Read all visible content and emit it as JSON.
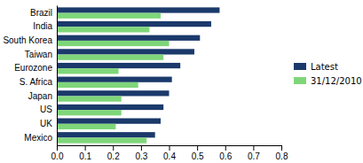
{
  "chart_data": {
    "type": "bar",
    "orientation": "horizontal",
    "categories": [
      "Brazil",
      "India",
      "South Korea",
      "Taiwan",
      "Eurozone",
      "S. Africa",
      "Japan",
      "US",
      "UK",
      "Mexico"
    ],
    "series": [
      {
        "name": "Latest",
        "color": "#1b3a6b",
        "values": [
          0.58,
          0.55,
          0.51,
          0.49,
          0.44,
          0.41,
          0.4,
          0.38,
          0.37,
          0.35
        ]
      },
      {
        "name": "31/12/2010",
        "color": "#7fd67a",
        "values": [
          0.37,
          0.33,
          0.4,
          0.38,
          0.22,
          0.29,
          0.23,
          0.23,
          0.21,
          0.32
        ]
      }
    ],
    "xlim": [
      0.0,
      0.8
    ],
    "xticks": [
      {
        "value": 0.0,
        "label": "0.0"
      },
      0.1,
      0.2,
      0.3,
      0.4,
      0.5,
      0.6,
      0.7,
      0.8
    ],
    "legend": "right",
    "grid": false
  }
}
